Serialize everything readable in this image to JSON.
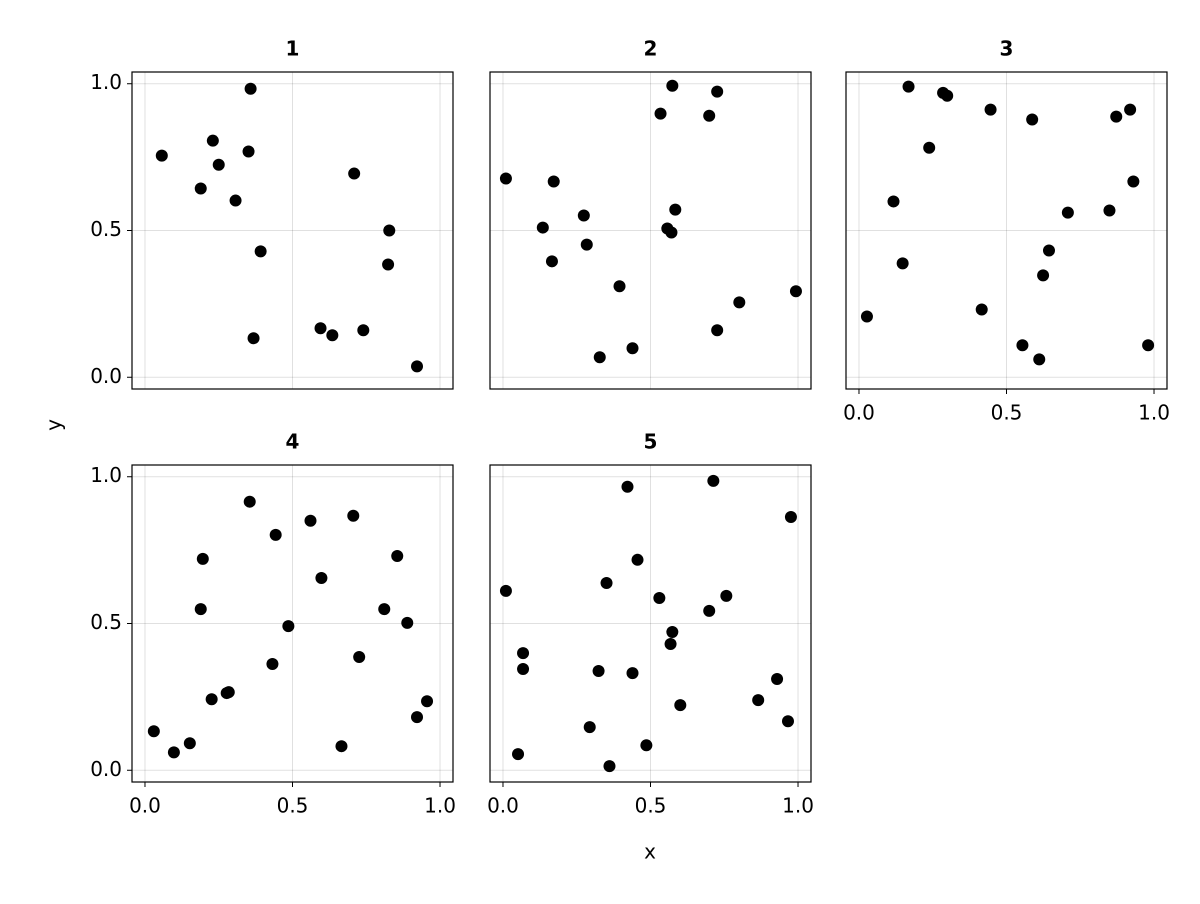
{
  "axis_labels": {
    "x": "x",
    "y": "y"
  },
  "chart_data": [
    {
      "type": "scatter",
      "title": "1",
      "color": "#000000",
      "grid": true,
      "xtick_labels": false,
      "ytick_labels": true,
      "x": [
        0.057,
        0.358,
        0.23,
        0.25,
        0.189,
        0.351,
        0.307,
        0.709,
        0.392,
        0.828,
        0.824,
        0.368,
        0.595,
        0.635,
        0.74,
        0.922
      ],
      "y": [
        0.755,
        0.983,
        0.806,
        0.724,
        0.643,
        0.769,
        0.602,
        0.694,
        0.429,
        0.5,
        0.384,
        0.133,
        0.167,
        0.143,
        0.16,
        0.037
      ],
      "xlim": [
        -0.044,
        1.044
      ],
      "ylim": [
        -0.04,
        1.04
      ],
      "xticks": [
        {
          "value": 0,
          "label": "0.0"
        },
        0.5,
        {
          "value": 1,
          "label": "1.0"
        }
      ],
      "yticks": [
        {
          "value": 0,
          "label": "0.0"
        },
        0.5,
        {
          "value": 1,
          "label": "1.0"
        }
      ]
    },
    {
      "type": "scatter",
      "title": "2",
      "color": "#000000",
      "grid": true,
      "xtick_labels": false,
      "ytick_labels": false,
      "x": [
        0.01,
        0.172,
        0.135,
        0.166,
        0.274,
        0.284,
        0.395,
        0.328,
        0.439,
        0.534,
        0.574,
        0.726,
        0.699,
        0.584,
        0.557,
        0.571,
        0.726,
        0.801,
        0.993
      ],
      "y": [
        0.677,
        0.667,
        0.51,
        0.395,
        0.551,
        0.452,
        0.31,
        0.068,
        0.099,
        0.898,
        0.993,
        0.973,
        0.891,
        0.571,
        0.507,
        0.493,
        0.16,
        0.255,
        0.293
      ],
      "xlim": [
        -0.044,
        1.044
      ],
      "ylim": [
        -0.04,
        1.04
      ],
      "xticks": [
        {
          "value": 0,
          "label": "0.0"
        },
        0.5,
        {
          "value": 1,
          "label": "1.0"
        }
      ],
      "yticks": [
        {
          "value": 0,
          "label": "0.0"
        },
        0.5,
        {
          "value": 1,
          "label": "1.0"
        }
      ]
    },
    {
      "type": "scatter",
      "title": "3",
      "color": "#000000",
      "grid": true,
      "xtick_labels": true,
      "ytick_labels": false,
      "x": [
        0.027,
        0.117,
        0.148,
        0.168,
        0.238,
        0.285,
        0.299,
        0.446,
        0.416,
        0.587,
        0.554,
        0.611,
        0.624,
        0.644,
        0.708,
        0.849,
        0.872,
        0.919,
        0.93,
        0.98
      ],
      "y": [
        0.207,
        0.599,
        0.388,
        0.99,
        0.782,
        0.969,
        0.959,
        0.912,
        0.231,
        0.878,
        0.109,
        0.061,
        0.347,
        0.432,
        0.561,
        0.568,
        0.888,
        0.912,
        0.667,
        0.109
      ],
      "xlim": [
        -0.044,
        1.044
      ],
      "ylim": [
        -0.04,
        1.04
      ],
      "xticks": [
        {
          "value": 0,
          "label": "0.0"
        },
        0.5,
        {
          "value": 1,
          "label": "1.0"
        }
      ],
      "yticks": [
        {
          "value": 0,
          "label": "0.0"
        },
        0.5,
        {
          "value": 1,
          "label": "1.0"
        }
      ]
    },
    {
      "type": "scatter",
      "title": "4",
      "color": "#000000",
      "grid": true,
      "xtick_labels": true,
      "ytick_labels": true,
      "x": [
        0.03,
        0.098,
        0.152,
        0.196,
        0.189,
        0.226,
        0.277,
        0.284,
        0.355,
        0.443,
        0.432,
        0.486,
        0.561,
        0.598,
        0.666,
        0.706,
        0.726,
        0.811,
        0.855,
        0.889,
        0.922,
        0.956
      ],
      "y": [
        0.133,
        0.061,
        0.092,
        0.72,
        0.549,
        0.242,
        0.263,
        0.266,
        0.915,
        0.802,
        0.362,
        0.491,
        0.85,
        0.655,
        0.082,
        0.867,
        0.386,
        0.549,
        0.73,
        0.502,
        0.181,
        0.235
      ],
      "xlim": [
        -0.044,
        1.044
      ],
      "ylim": [
        -0.04,
        1.04
      ],
      "xticks": [
        {
          "value": 0,
          "label": "0.0"
        },
        0.5,
        {
          "value": 1,
          "label": "1.0"
        }
      ],
      "yticks": [
        {
          "value": 0,
          "label": "0.0"
        },
        0.5,
        {
          "value": 1,
          "label": "1.0"
        }
      ]
    },
    {
      "type": "scatter",
      "title": "5",
      "color": "#000000",
      "grid": true,
      "xtick_labels": true,
      "ytick_labels": false,
      "x": [
        0.01,
        0.068,
        0.068,
        0.051,
        0.294,
        0.324,
        0.351,
        0.361,
        0.422,
        0.439,
        0.456,
        0.486,
        0.53,
        0.574,
        0.568,
        0.601,
        0.699,
        0.713,
        0.757,
        0.865,
        0.929,
        0.966,
        0.976
      ],
      "y": [
        0.611,
        0.399,
        0.345,
        0.055,
        0.147,
        0.338,
        0.638,
        0.014,
        0.966,
        0.331,
        0.717,
        0.085,
        0.587,
        0.471,
        0.43,
        0.222,
        0.543,
        0.986,
        0.594,
        0.239,
        0.311,
        0.167,
        0.863
      ],
      "xlim": [
        -0.044,
        1.044
      ],
      "ylim": [
        -0.04,
        1.04
      ],
      "xticks": [
        {
          "value": 0,
          "label": "0.0"
        },
        0.5,
        {
          "value": 1,
          "label": "1.0"
        }
      ],
      "yticks": [
        {
          "value": 0,
          "label": "0.0"
        },
        0.5,
        {
          "value": 1,
          "label": "1.0"
        }
      ]
    }
  ]
}
